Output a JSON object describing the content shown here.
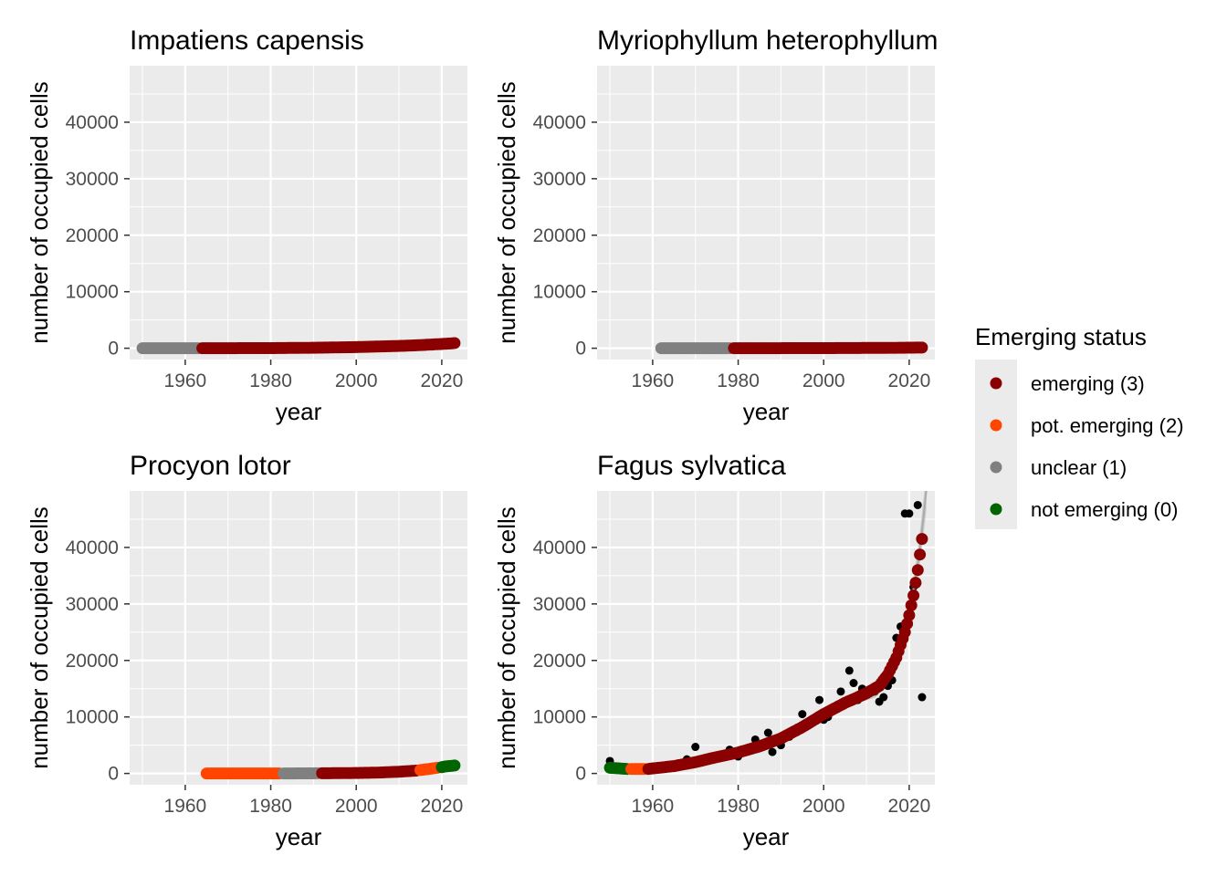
{
  "legend": {
    "title": "Emerging status",
    "placement": "right",
    "items": [
      {
        "key": "3",
        "label": "emerging (3)",
        "color": "#8B0000"
      },
      {
        "key": "2",
        "label": "pot. emerging (2)",
        "color": "#FF4500"
      },
      {
        "key": "1",
        "label": "unclear (1)",
        "color": "#808080"
      },
      {
        "key": "0",
        "label": "not emerging (0)",
        "color": "#006400"
      }
    ]
  },
  "chart_data": [
    {
      "type": "scatter",
      "title": "Impatiens capensis",
      "xlabel": "year",
      "ylabel": "number of occupied cells",
      "xlim": [
        1947,
        2026
      ],
      "ylim": [
        -2000,
        50000
      ],
      "xticks": [
        1960,
        1980,
        2000,
        2020
      ],
      "yticks": [
        0,
        10000,
        20000,
        30000,
        40000
      ],
      "grid": true,
      "raw_points": [],
      "status_segments": [
        {
          "status": "1",
          "x": [
            1950,
            1963
          ],
          "y": [
            0,
            0
          ]
        },
        {
          "status": "3",
          "x": [
            1964,
            1980,
            1990,
            2000,
            2010,
            2015,
            2020,
            2023
          ],
          "y": [
            0,
            20,
            80,
            200,
            400,
            550,
            750,
            900
          ]
        }
      ],
      "smooth": null
    },
    {
      "type": "scatter",
      "title": "Myriophyllum heterophyllum",
      "xlabel": "year",
      "ylabel": "number of occupied cells",
      "xlim": [
        1947,
        2026
      ],
      "ylim": [
        -2000,
        50000
      ],
      "xticks": [
        1960,
        1980,
        2000,
        2020
      ],
      "yticks": [
        0,
        10000,
        20000,
        30000,
        40000
      ],
      "grid": true,
      "raw_points": [],
      "status_segments": [
        {
          "status": "1",
          "x": [
            1962,
            1978
          ],
          "y": [
            0,
            0
          ]
        },
        {
          "status": "3",
          "x": [
            1979,
            2000,
            2015,
            2023
          ],
          "y": [
            0,
            20,
            60,
            120
          ]
        }
      ],
      "smooth": null
    },
    {
      "type": "scatter",
      "title": "Procyon lotor",
      "xlabel": "year",
      "ylabel": "number of occupied cells",
      "xlim": [
        1947,
        2026
      ],
      "ylim": [
        -2000,
        50000
      ],
      "xticks": [
        1960,
        1980,
        2000,
        2020
      ],
      "yticks": [
        0,
        10000,
        20000,
        30000,
        40000
      ],
      "grid": true,
      "raw_points": [],
      "status_segments": [
        {
          "status": "2",
          "x": [
            1965,
            1982
          ],
          "y": [
            0,
            0
          ]
        },
        {
          "status": "1",
          "x": [
            1983,
            1991
          ],
          "y": [
            0,
            30
          ]
        },
        {
          "status": "3",
          "x": [
            1992,
            2000,
            2005,
            2010,
            2014
          ],
          "y": [
            30,
            80,
            150,
            300,
            500
          ]
        },
        {
          "status": "2",
          "x": [
            2015,
            2017,
            2019
          ],
          "y": [
            600,
            800,
            1000
          ]
        },
        {
          "status": "0",
          "x": [
            2020,
            2021,
            2023
          ],
          "y": [
            1100,
            1250,
            1400
          ]
        }
      ],
      "smooth": null
    },
    {
      "type": "scatter",
      "title": "Fagus sylvatica",
      "xlabel": "year",
      "ylabel": "number of occupied cells",
      "xlim": [
        1947,
        2026
      ],
      "ylim": [
        -2000,
        50000
      ],
      "xticks": [
        1960,
        1980,
        2000,
        2020
      ],
      "yticks": [
        0,
        10000,
        20000,
        30000,
        40000
      ],
      "grid": true,
      "raw_points": [
        [
          1950,
          2200
        ],
        [
          1952,
          1000
        ],
        [
          1955,
          800
        ],
        [
          1958,
          900
        ],
        [
          1960,
          1200
        ],
        [
          1962,
          1000
        ],
        [
          1964,
          1500
        ],
        [
          1966,
          1800
        ],
        [
          1968,
          2500
        ],
        [
          1970,
          4700
        ],
        [
          1972,
          2200
        ],
        [
          1974,
          3000
        ],
        [
          1976,
          2800
        ],
        [
          1978,
          4200
        ],
        [
          1980,
          3000
        ],
        [
          1982,
          4000
        ],
        [
          1984,
          6000
        ],
        [
          1986,
          5000
        ],
        [
          1987,
          7200
        ],
        [
          1988,
          3800
        ],
        [
          1990,
          5000
        ],
        [
          1992,
          6500
        ],
        [
          1994,
          8000
        ],
        [
          1995,
          10500
        ],
        [
          1997,
          9000
        ],
        [
          1999,
          13000
        ],
        [
          2000,
          9500
        ],
        [
          2001,
          10000
        ],
        [
          2002,
          11000
        ],
        [
          2004,
          14500
        ],
        [
          2006,
          18200
        ],
        [
          2007,
          16000
        ],
        [
          2008,
          13000
        ],
        [
          2009,
          15000
        ],
        [
          2010,
          14000
        ],
        [
          2012,
          14500
        ],
        [
          2013,
          12700
        ],
        [
          2014,
          13500
        ],
        [
          2015,
          15500
        ],
        [
          2016,
          16500
        ],
        [
          2017,
          24000
        ],
        [
          2018,
          26000
        ],
        [
          2019,
          46000
        ],
        [
          2020,
          46000
        ],
        [
          2021,
          33000
        ],
        [
          2022,
          47500
        ],
        [
          2023,
          13500
        ]
      ],
      "status_segments": [
        {
          "status": "0",
          "x": [
            1950,
            1952,
            1954
          ],
          "y": [
            1000,
            900,
            800
          ]
        },
        {
          "status": "2",
          "x": [
            1955,
            1958
          ],
          "y": [
            800,
            800
          ]
        },
        {
          "status": "3",
          "x": [
            1959,
            1965,
            1970,
            1975,
            1980,
            1985,
            1990,
            1995,
            2000,
            2005,
            2008,
            2010,
            2013,
            2015,
            2017,
            2019,
            2020,
            2021,
            2022,
            2023
          ],
          "y": [
            800,
            1300,
            2000,
            2900,
            3700,
            4800,
            6200,
            8200,
            10500,
            12500,
            13500,
            14200,
            15500,
            17500,
            20500,
            25000,
            28000,
            31500,
            36000,
            41500
          ]
        }
      ],
      "smooth": {
        "x": [
          1950,
          1960,
          1970,
          1980,
          1990,
          2000,
          2005,
          2008,
          2012,
          2015,
          2018,
          2020,
          2022,
          2023,
          2024
        ],
        "y": [
          900,
          900,
          2200,
          3700,
          6300,
          10500,
          12800,
          13500,
          14500,
          17000,
          22500,
          28000,
          37000,
          43000,
          50000
        ],
        "band": [
          200,
          250,
          350,
          400,
          500,
          700,
          900,
          1000,
          1100,
          1300,
          1600,
          2000,
          2500,
          3000,
          3500
        ]
      }
    }
  ]
}
